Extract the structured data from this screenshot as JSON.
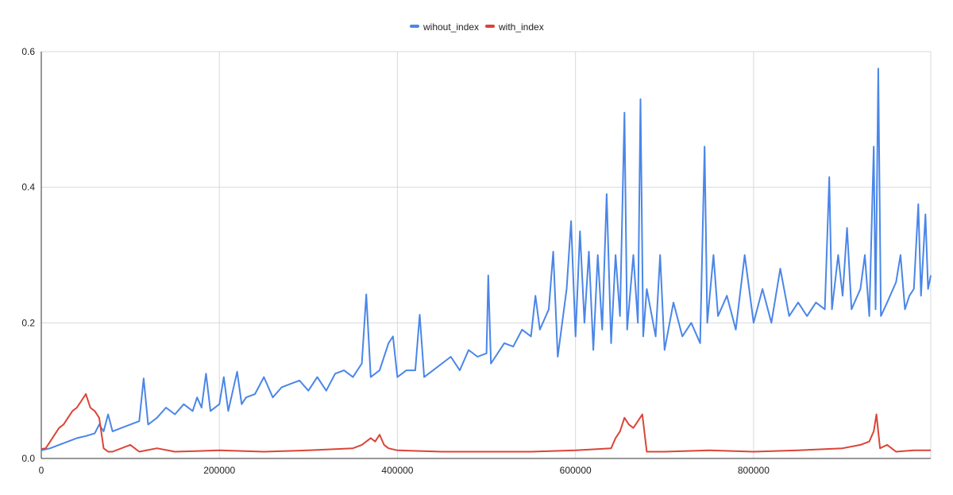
{
  "chart_data": {
    "type": "line",
    "title": "",
    "xlabel": "",
    "ylabel": "",
    "xlim": [
      0,
      999000
    ],
    "ylim": [
      0,
      0.6
    ],
    "grid": true,
    "legend_placement": "top-center",
    "x_ticks": [
      {
        "value": 0,
        "label": "0"
      },
      {
        "value": 200000,
        "label": "200000"
      },
      {
        "value": 400000,
        "label": "400000"
      },
      {
        "value": 600000,
        "label": "600000"
      },
      {
        "value": 800000,
        "label": "800000"
      }
    ],
    "y_ticks": [
      {
        "value": 0,
        "label": "0.0"
      },
      {
        "value": 0.2,
        "label": "0.2"
      },
      {
        "value": 0.4,
        "label": "0.4"
      },
      {
        "value": 0.6,
        "label": "0.6"
      }
    ],
    "series": [
      {
        "name": "wihout_index",
        "color": "#4a86e8",
        "points": [
          [
            0,
            0.012
          ],
          [
            10000,
            0.015
          ],
          [
            20000,
            0.02
          ],
          [
            30000,
            0.025
          ],
          [
            40000,
            0.03
          ],
          [
            50000,
            0.033
          ],
          [
            60000,
            0.037
          ],
          [
            65000,
            0.05
          ],
          [
            70000,
            0.04
          ],
          [
            75000,
            0.065
          ],
          [
            80000,
            0.04
          ],
          [
            90000,
            0.045
          ],
          [
            100000,
            0.05
          ],
          [
            110000,
            0.055
          ],
          [
            115000,
            0.118
          ],
          [
            120000,
            0.05
          ],
          [
            130000,
            0.06
          ],
          [
            140000,
            0.075
          ],
          [
            150000,
            0.065
          ],
          [
            160000,
            0.08
          ],
          [
            170000,
            0.07
          ],
          [
            175000,
            0.09
          ],
          [
            180000,
            0.075
          ],
          [
            185000,
            0.125
          ],
          [
            190000,
            0.07
          ],
          [
            200000,
            0.08
          ],
          [
            205000,
            0.12
          ],
          [
            210000,
            0.07
          ],
          [
            220000,
            0.128
          ],
          [
            225000,
            0.08
          ],
          [
            230000,
            0.09
          ],
          [
            240000,
            0.095
          ],
          [
            250000,
            0.12
          ],
          [
            260000,
            0.09
          ],
          [
            270000,
            0.105
          ],
          [
            280000,
            0.11
          ],
          [
            290000,
            0.115
          ],
          [
            300000,
            0.1
          ],
          [
            310000,
            0.12
          ],
          [
            320000,
            0.1
          ],
          [
            330000,
            0.125
          ],
          [
            340000,
            0.13
          ],
          [
            350000,
            0.12
          ],
          [
            360000,
            0.14
          ],
          [
            365000,
            0.242
          ],
          [
            370000,
            0.12
          ],
          [
            380000,
            0.13
          ],
          [
            390000,
            0.17
          ],
          [
            395000,
            0.18
          ],
          [
            400000,
            0.12
          ],
          [
            410000,
            0.13
          ],
          [
            420000,
            0.13
          ],
          [
            425000,
            0.212
          ],
          [
            430000,
            0.12
          ],
          [
            440000,
            0.13
          ],
          [
            450000,
            0.14
          ],
          [
            460000,
            0.15
          ],
          [
            470000,
            0.13
          ],
          [
            480000,
            0.16
          ],
          [
            490000,
            0.15
          ],
          [
            500000,
            0.155
          ],
          [
            502000,
            0.27
          ],
          [
            505000,
            0.14
          ],
          [
            510000,
            0.15
          ],
          [
            520000,
            0.17
          ],
          [
            530000,
            0.165
          ],
          [
            540000,
            0.19
          ],
          [
            550000,
            0.18
          ],
          [
            555000,
            0.24
          ],
          [
            560000,
            0.19
          ],
          [
            570000,
            0.22
          ],
          [
            575000,
            0.305
          ],
          [
            580000,
            0.15
          ],
          [
            590000,
            0.25
          ],
          [
            595000,
            0.35
          ],
          [
            600000,
            0.18
          ],
          [
            605000,
            0.335
          ],
          [
            610000,
            0.2
          ],
          [
            615000,
            0.305
          ],
          [
            620000,
            0.16
          ],
          [
            625000,
            0.3
          ],
          [
            630000,
            0.19
          ],
          [
            635000,
            0.39
          ],
          [
            640000,
            0.17
          ],
          [
            645000,
            0.3
          ],
          [
            650000,
            0.21
          ],
          [
            655000,
            0.51
          ],
          [
            658000,
            0.19
          ],
          [
            665000,
            0.3
          ],
          [
            670000,
            0.2
          ],
          [
            673000,
            0.53
          ],
          [
            676000,
            0.18
          ],
          [
            680000,
            0.25
          ],
          [
            690000,
            0.18
          ],
          [
            695000,
            0.3
          ],
          [
            700000,
            0.16
          ],
          [
            710000,
            0.23
          ],
          [
            720000,
            0.18
          ],
          [
            730000,
            0.2
          ],
          [
            740000,
            0.17
          ],
          [
            745000,
            0.46
          ],
          [
            748000,
            0.2
          ],
          [
            755000,
            0.3
          ],
          [
            760000,
            0.21
          ],
          [
            770000,
            0.24
          ],
          [
            780000,
            0.19
          ],
          [
            790000,
            0.3
          ],
          [
            800000,
            0.2
          ],
          [
            810000,
            0.25
          ],
          [
            820000,
            0.2
          ],
          [
            830000,
            0.28
          ],
          [
            840000,
            0.21
          ],
          [
            850000,
            0.23
          ],
          [
            860000,
            0.21
          ],
          [
            870000,
            0.23
          ],
          [
            880000,
            0.22
          ],
          [
            885000,
            0.415
          ],
          [
            888000,
            0.22
          ],
          [
            895000,
            0.3
          ],
          [
            900000,
            0.24
          ],
          [
            905000,
            0.34
          ],
          [
            910000,
            0.22
          ],
          [
            920000,
            0.25
          ],
          [
            925000,
            0.3
          ],
          [
            930000,
            0.21
          ],
          [
            935000,
            0.46
          ],
          [
            937000,
            0.22
          ],
          [
            940000,
            0.575
          ],
          [
            943000,
            0.21
          ],
          [
            950000,
            0.23
          ],
          [
            960000,
            0.26
          ],
          [
            965000,
            0.3
          ],
          [
            970000,
            0.22
          ],
          [
            975000,
            0.24
          ],
          [
            980000,
            0.25
          ],
          [
            985000,
            0.375
          ],
          [
            988000,
            0.24
          ],
          [
            993000,
            0.36
          ],
          [
            996000,
            0.25
          ],
          [
            999000,
            0.27
          ]
        ]
      },
      {
        "name": "with_index",
        "color": "#db4437",
        "points": [
          [
            0,
            0.014
          ],
          [
            5000,
            0.015
          ],
          [
            10000,
            0.025
          ],
          [
            15000,
            0.035
          ],
          [
            20000,
            0.045
          ],
          [
            25000,
            0.05
          ],
          [
            30000,
            0.06
          ],
          [
            35000,
            0.07
          ],
          [
            40000,
            0.075
          ],
          [
            45000,
            0.085
          ],
          [
            50000,
            0.095
          ],
          [
            55000,
            0.075
          ],
          [
            60000,
            0.07
          ],
          [
            65000,
            0.06
          ],
          [
            70000,
            0.015
          ],
          [
            75000,
            0.01
          ],
          [
            80000,
            0.01
          ],
          [
            100000,
            0.02
          ],
          [
            110000,
            0.01
          ],
          [
            130000,
            0.015
          ],
          [
            150000,
            0.01
          ],
          [
            200000,
            0.012
          ],
          [
            250000,
            0.01
          ],
          [
            300000,
            0.012
          ],
          [
            350000,
            0.015
          ],
          [
            360000,
            0.02
          ],
          [
            370000,
            0.03
          ],
          [
            375000,
            0.025
          ],
          [
            380000,
            0.035
          ],
          [
            385000,
            0.02
          ],
          [
            390000,
            0.015
          ],
          [
            400000,
            0.012
          ],
          [
            450000,
            0.01
          ],
          [
            500000,
            0.01
          ],
          [
            550000,
            0.01
          ],
          [
            600000,
            0.012
          ],
          [
            640000,
            0.015
          ],
          [
            645000,
            0.03
          ],
          [
            650000,
            0.04
          ],
          [
            655000,
            0.06
          ],
          [
            660000,
            0.05
          ],
          [
            665000,
            0.045
          ],
          [
            670000,
            0.055
          ],
          [
            675000,
            0.065
          ],
          [
            680000,
            0.01
          ],
          [
            700000,
            0.01
          ],
          [
            750000,
            0.012
          ],
          [
            800000,
            0.01
          ],
          [
            850000,
            0.012
          ],
          [
            900000,
            0.015
          ],
          [
            920000,
            0.02
          ],
          [
            930000,
            0.025
          ],
          [
            935000,
            0.04
          ],
          [
            938000,
            0.065
          ],
          [
            942000,
            0.015
          ],
          [
            950000,
            0.02
          ],
          [
            960000,
            0.01
          ],
          [
            980000,
            0.012
          ],
          [
            999000,
            0.012
          ]
        ]
      }
    ]
  }
}
